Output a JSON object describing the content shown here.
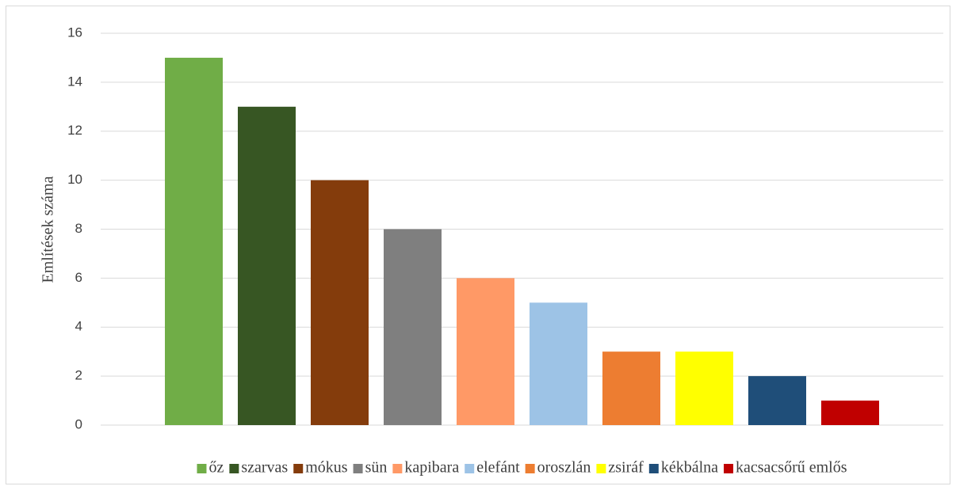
{
  "chart_data": {
    "type": "bar",
    "y_label": "Említések száma",
    "series": [
      {
        "name": "őz",
        "color": "#70ad47",
        "values": [
          15
        ]
      },
      {
        "name": "szarvas",
        "color": "#375623",
        "values": [
          13
        ]
      },
      {
        "name": "mókus",
        "color": "#843c0c",
        "values": [
          10
        ]
      },
      {
        "name": "sün",
        "color": "#7f7f7f",
        "values": [
          8
        ]
      },
      {
        "name": "kapibara",
        "color": "#ff9966",
        "values": [
          6
        ]
      },
      {
        "name": "elefánt",
        "color": "#9dc3e6",
        "values": [
          5
        ]
      },
      {
        "name": "oroszlán",
        "color": "#ed7d31",
        "values": [
          3
        ]
      },
      {
        "name": "zsiráf",
        "color": "#ffff00",
        "values": [
          3
        ]
      },
      {
        "name": "kékbálna",
        "color": "#1f4e79",
        "values": [
          2
        ]
      },
      {
        "name": "kacsacsőrű emlős",
        "color": "#c00000",
        "values": [
          1
        ]
      }
    ],
    "ylim": [
      0,
      16
    ],
    "yticks": [
      0,
      2,
      4,
      6,
      8,
      10,
      12,
      14,
      16
    ],
    "grid": true,
    "legend": "bottom"
  }
}
